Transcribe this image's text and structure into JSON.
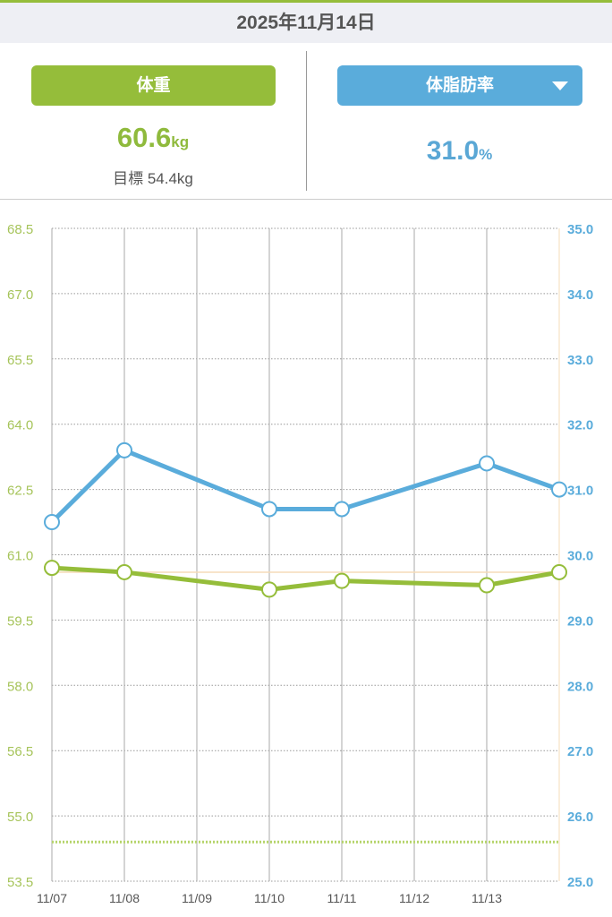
{
  "header": {
    "date": "2025年11月14日"
  },
  "weight_panel": {
    "button_label": "体重",
    "value": "60.6",
    "unit": "kg",
    "goal_label": "目標 54.4kg"
  },
  "fat_panel": {
    "button_label": "体脂肪率",
    "value": "31.0",
    "unit": "%",
    "dropdown_icon": "triangle-down"
  },
  "colors": {
    "weight": "#95bd3a",
    "fat": "#5aacdb"
  },
  "chart_data": {
    "type": "line",
    "x": [
      "11/07",
      "11/08",
      "11/09",
      "11/10",
      "11/11",
      "11/12",
      "11/13",
      "11/14"
    ],
    "x_tick_labels": [
      "11/07",
      "11/08",
      "11/09",
      "11/10",
      "11/11",
      "11/12",
      "11/13"
    ],
    "left_axis": {
      "ylim": [
        53.5,
        68.5
      ],
      "ticks": [
        "68.5",
        "67.0",
        "65.5",
        "64.0",
        "62.5",
        "61.0",
        "59.5",
        "58.0",
        "56.5",
        "55.0",
        "53.5"
      ]
    },
    "right_axis": {
      "ylim": [
        25.0,
        35.0
      ],
      "ticks": [
        "35.0",
        "34.0",
        "33.0",
        "32.0",
        "31.0",
        "30.0",
        "29.0",
        "28.0",
        "27.0",
        "26.0",
        "25.0"
      ]
    },
    "series": [
      {
        "name": "体重",
        "axis": "left",
        "points": [
          [
            "11/07",
            60.7
          ],
          [
            "11/08",
            60.6
          ],
          [
            "11/10",
            60.2
          ],
          [
            "11/11",
            60.4
          ],
          [
            "11/13",
            60.3
          ],
          [
            "11/14",
            60.6
          ]
        ]
      },
      {
        "name": "体脂肪率",
        "axis": "right",
        "points": [
          [
            "11/07",
            30.5
          ],
          [
            "11/08",
            31.6
          ],
          [
            "11/10",
            30.7
          ],
          [
            "11/11",
            30.7
          ],
          [
            "11/13",
            31.4
          ],
          [
            "11/14",
            31.0
          ]
        ]
      }
    ],
    "reference_lines": {
      "current_weight": 60.6,
      "goal_weight": 54.4
    }
  }
}
